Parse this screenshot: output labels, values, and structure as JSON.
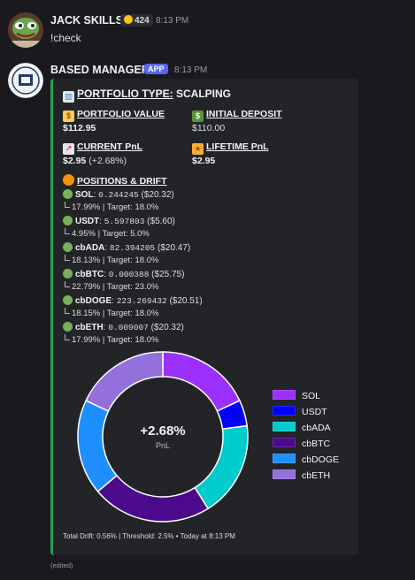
{
  "messages": [
    {
      "author": "JACK SKILLS",
      "badge": "424",
      "time": "8:13 PM",
      "text": "!check"
    },
    {
      "author": "BASED MANAGER",
      "tag": "APP",
      "time": "8:13 PM",
      "avatar_text": "BASED MANAGER"
    }
  ],
  "embed": {
    "title_prefix": "PORTFOLIO TYPE:",
    "title_value": "SCALPING",
    "portfolio_value_label": "PORTFOLIO VALUE",
    "portfolio_value": "$112.95",
    "initial_deposit_label": "INITIAL DEPOSIT",
    "initial_deposit": "$110.00",
    "current_pnl_label": "CURRENT PnL",
    "current_pnl": "$2.95",
    "current_pnl_pct": "(+2.68%)",
    "lifetime_pnl_label": "LIFETIME PnL",
    "lifetime_pnl": "$2.95",
    "positions_label": "POSITIONS & DRIFT",
    "positions": [
      {
        "symbol": "SOL",
        "amount": "0.244245",
        "value": "($20.32)",
        "drift": "17.99% | Target: 18.0%"
      },
      {
        "symbol": "USDT",
        "amount": "5.597803",
        "value": "($5.60)",
        "drift": "4.95% | Target: 5.0%"
      },
      {
        "symbol": "cbADA",
        "amount": "82.394205",
        "value": "($20.47)",
        "drift": "18.13% | Target: 18.0%"
      },
      {
        "symbol": "cbBTC",
        "amount": "0.000388",
        "value": "($25.75)",
        "drift": "22.79% | Target: 23.0%"
      },
      {
        "symbol": "cbDOGE",
        "amount": "223.269432",
        "value": "($20.51)",
        "drift": "18.15% | Target: 18.0%"
      },
      {
        "symbol": "cbETH",
        "amount": "0.009007",
        "value": "($20.32)",
        "drift": "17.99% | Target: 18.0%"
      }
    ],
    "footer": "Total Drift: 0.56% | Threshold: 2.5% • Today at 8:13 PM",
    "edited": "(edited)"
  },
  "chart_data": {
    "type": "pie",
    "variant": "donut",
    "center_label": "+2.68%",
    "center_sublabel": "PnL",
    "legend_position": "right",
    "series": [
      {
        "name": "SOL",
        "value": 20.32,
        "color": "#9b30ff"
      },
      {
        "name": "USDT",
        "value": 5.6,
        "color": "#0000ff"
      },
      {
        "name": "cbADA",
        "value": 20.47,
        "color": "#00cccc"
      },
      {
        "name": "cbBTC",
        "value": 25.75,
        "color": "#4b0a8c"
      },
      {
        "name": "cbDOGE",
        "value": 20.51,
        "color": "#1e8fff"
      },
      {
        "name": "cbETH",
        "value": 20.32,
        "color": "#9370db"
      }
    ]
  }
}
